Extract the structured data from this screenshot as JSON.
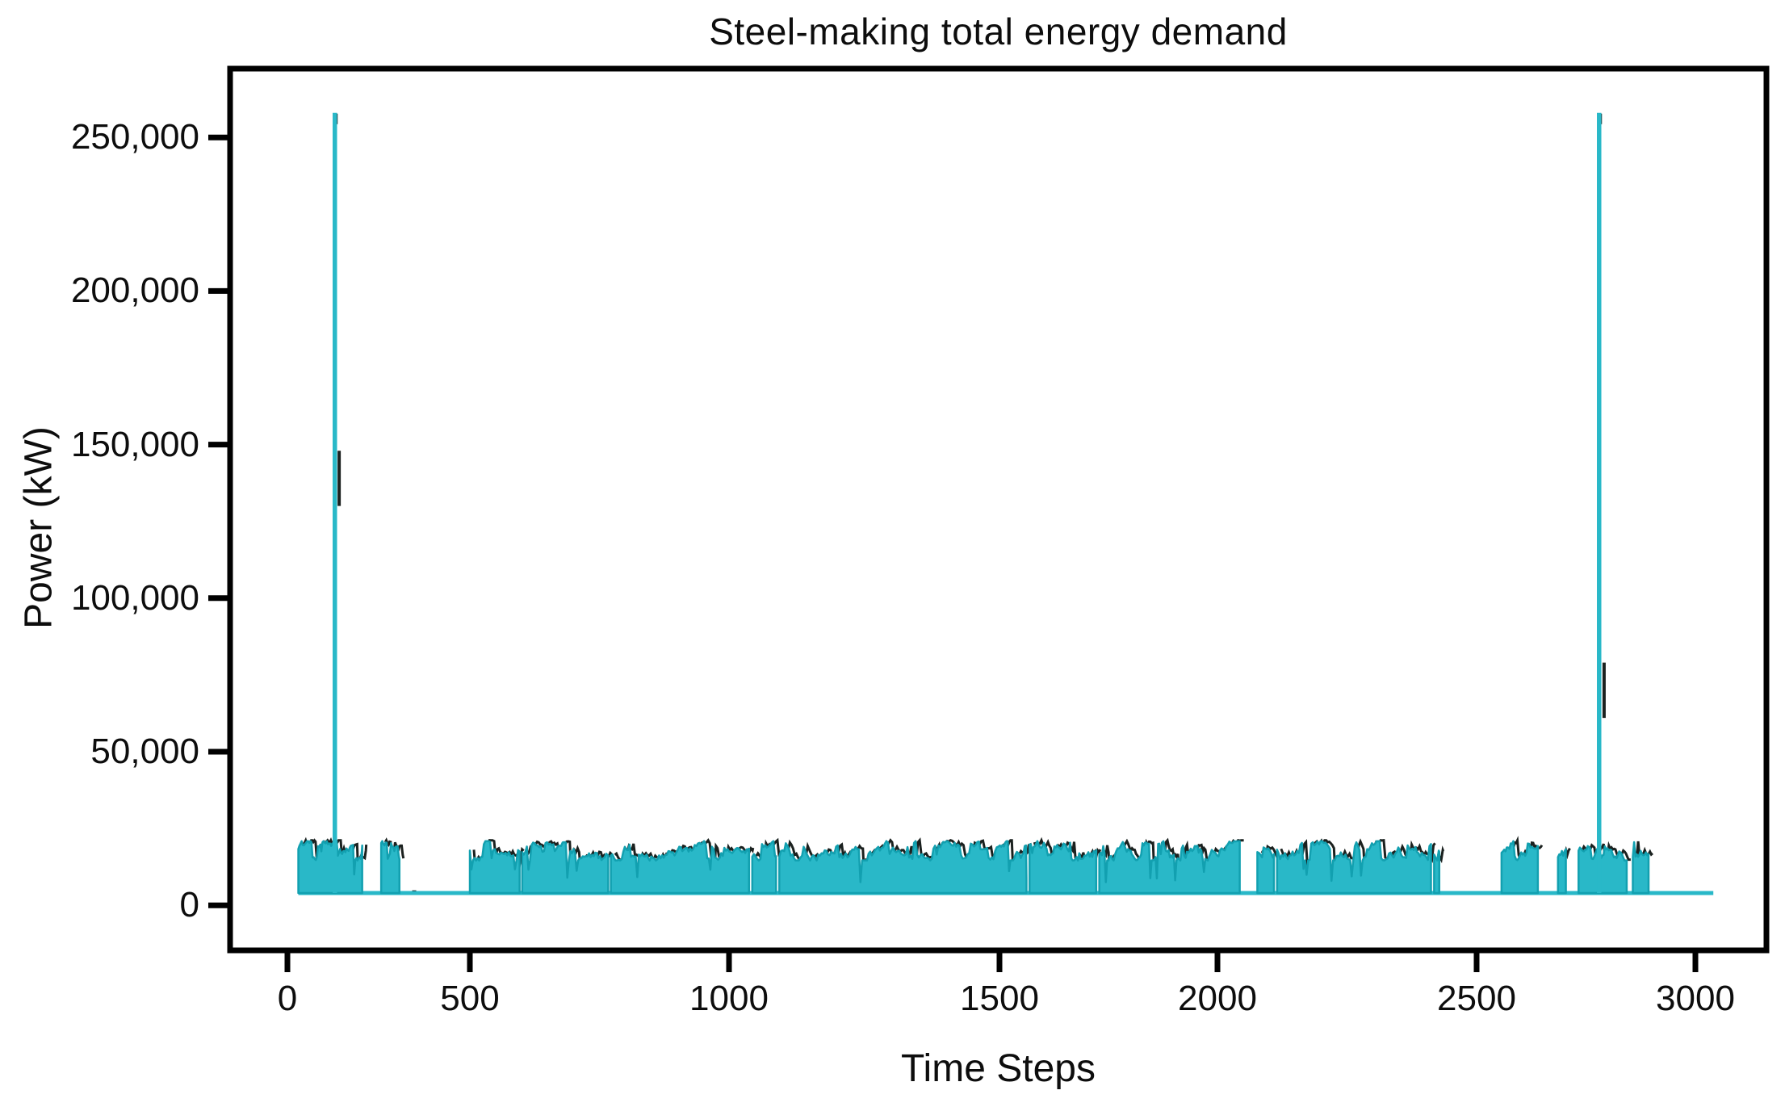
{
  "chart": {
    "title": "Steel-making total energy demand",
    "x_axis": {
      "label": "Time Steps"
    },
    "y_axis": {
      "label": "Power (kW)"
    }
  },
  "chart_data": {
    "type": "area",
    "title": "Steel-making total energy demand",
    "xlabel": "Time Steps",
    "ylabel": "Power (kW)",
    "xlim": [
      -160,
      3160
    ],
    "ylim": [
      -14700,
      272000
    ],
    "grid": false,
    "legend": "none",
    "x_tick_values": [
      0,
      500,
      1000,
      1500,
      2000,
      2500,
      3000
    ],
    "x_tick_labels": [
      "0",
      "500",
      "1000",
      "1500",
      "2000",
      "2500",
      "3000"
    ],
    "y_tick_values": [
      0,
      50000,
      100000,
      150000,
      200000,
      250000
    ],
    "y_tick_labels": [
      "0",
      "50,000",
      "100,000",
      "150,000",
      "200,000",
      "250,000"
    ],
    "series_name": "Total energy demand",
    "baseline_kw": 4000,
    "burst_band_kw": [
      15000,
      21000
    ],
    "data_start_step": 30,
    "data_end_step": 3041,
    "burst_intervals": [
      [
        30,
        205
      ],
      [
        257,
        307
      ],
      [
        500,
        596
      ],
      [
        601,
        767
      ],
      [
        772,
        1037
      ],
      [
        1043,
        1087
      ],
      [
        1093,
        1562
      ],
      [
        1569,
        1722
      ],
      [
        1729,
        2043
      ],
      [
        2077,
        2109
      ],
      [
        2115,
        2412
      ],
      [
        2418,
        2428
      ],
      [
        2557,
        2640
      ],
      [
        2686,
        2704
      ],
      [
        2733,
        2843
      ],
      [
        2857,
        2893
      ]
    ],
    "spikes": [
      {
        "step": 130,
        "peak_kw": 258000
      },
      {
        "step": 2780,
        "peak_kw": 258000
      }
    ],
    "dark_line_peaks": [
      {
        "step": 133,
        "peak_kw": 148000
      },
      {
        "step": 2784,
        "peak_kw": 79000
      }
    ],
    "colors": {
      "fill": "#29b8c8",
      "edge": "#12a0b0",
      "dark": "#1b211f",
      "axis": "#000000",
      "text": "#0d0d0d",
      "background": "#ffffff"
    }
  }
}
